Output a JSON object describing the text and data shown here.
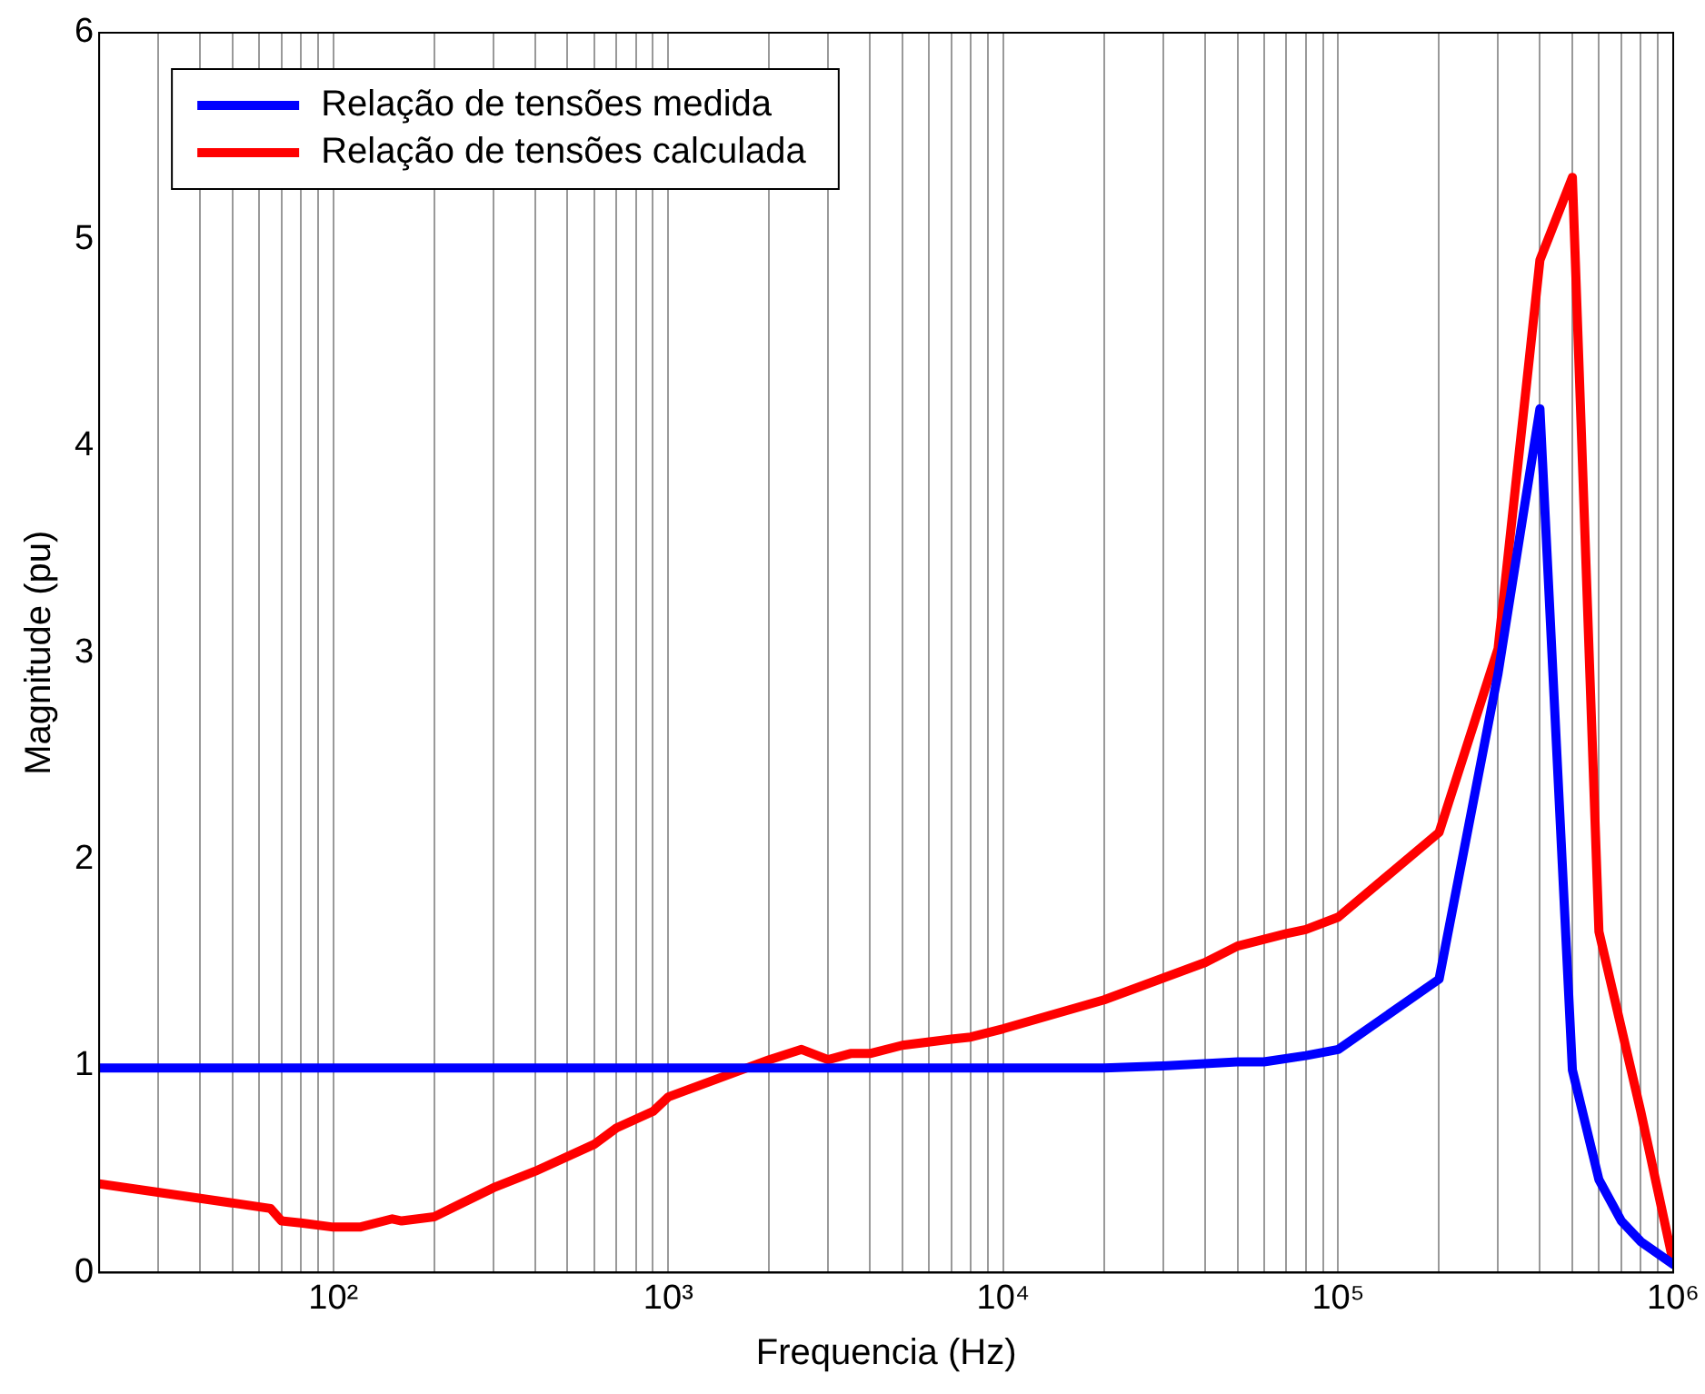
{
  "chart_data": {
    "type": "line",
    "xlabel": "Frequencia (Hz)",
    "ylabel": "Magnitude (pu)",
    "log": "x",
    "xlim": [
      20,
      1000000
    ],
    "ylim": [
      0,
      6
    ],
    "yticks": [
      0,
      1,
      2,
      3,
      4,
      5,
      6
    ],
    "xticks": [
      {
        "value": 20,
        "label": null
      },
      {
        "value": 30,
        "label": null
      },
      {
        "value": 40,
        "label": null
      },
      {
        "value": 50,
        "label": null
      },
      {
        "value": 60,
        "label": null
      },
      {
        "value": 70,
        "label": null
      },
      {
        "value": 80,
        "label": null
      },
      {
        "value": 90,
        "label": null
      },
      {
        "value": 100,
        "label": "10²"
      },
      {
        "value": 200,
        "label": null
      },
      {
        "value": 300,
        "label": null
      },
      {
        "value": 400,
        "label": null
      },
      {
        "value": 500,
        "label": null
      },
      {
        "value": 600,
        "label": null
      },
      {
        "value": 700,
        "label": null
      },
      {
        "value": 800,
        "label": null
      },
      {
        "value": 900,
        "label": null
      },
      {
        "value": 1000,
        "label": "10³"
      },
      {
        "value": 2000,
        "label": null
      },
      {
        "value": 3000,
        "label": null
      },
      {
        "value": 4000,
        "label": null
      },
      {
        "value": 5000,
        "label": null
      },
      {
        "value": 6000,
        "label": null
      },
      {
        "value": 7000,
        "label": null
      },
      {
        "value": 8000,
        "label": null
      },
      {
        "value": 9000,
        "label": null
      },
      {
        "value": 10000,
        "label": "10⁴"
      },
      {
        "value": 20000,
        "label": null
      },
      {
        "value": 30000,
        "label": null
      },
      {
        "value": 40000,
        "label": null
      },
      {
        "value": 50000,
        "label": null
      },
      {
        "value": 60000,
        "label": null
      },
      {
        "value": 70000,
        "label": null
      },
      {
        "value": 80000,
        "label": null
      },
      {
        "value": 90000,
        "label": null
      },
      {
        "value": 100000,
        "label": "10⁵"
      },
      {
        "value": 200000,
        "label": null
      },
      {
        "value": 300000,
        "label": null
      },
      {
        "value": 400000,
        "label": null
      },
      {
        "value": 500000,
        "label": null
      },
      {
        "value": 600000,
        "label": null
      },
      {
        "value": 700000,
        "label": null
      },
      {
        "value": 800000,
        "label": null
      },
      {
        "value": 900000,
        "label": null
      },
      {
        "value": 1000000,
        "label": "10⁶"
      }
    ],
    "grid": "x",
    "legend": "top left",
    "marker": "none",
    "line_style": "solid",
    "series": [
      {
        "name": "Relação de tensões medida",
        "color": "#0000ff",
        "x": [
          20,
          1000,
          10000,
          20000,
          30000,
          50000,
          60000,
          80000,
          100000,
          200000,
          300000,
          400000,
          500000,
          600000,
          700000,
          800000,
          1000000
        ],
        "values": [
          0.99,
          0.99,
          0.99,
          0.99,
          1.0,
          1.02,
          1.02,
          1.05,
          1.08,
          1.42,
          2.9,
          4.18,
          0.98,
          0.45,
          0.25,
          0.15,
          0.04
        ]
      },
      {
        "name": "Relação de tensões calculada",
        "color": "#ff0000",
        "x": [
          20,
          65,
          70,
          80,
          100,
          120,
          150,
          160,
          200,
          300,
          400,
          600,
          700,
          900,
          1000,
          2000,
          2500,
          3000,
          3500,
          4000,
          5000,
          7000,
          8000,
          10000,
          20000,
          40000,
          50000,
          70000,
          80000,
          100000,
          200000,
          300000,
          400000,
          500000,
          600000,
          800000,
          1000000
        ],
        "values": [
          0.43,
          0.31,
          0.25,
          0.24,
          0.22,
          0.22,
          0.26,
          0.25,
          0.27,
          0.41,
          0.49,
          0.62,
          0.7,
          0.78,
          0.85,
          1.03,
          1.08,
          1.03,
          1.06,
          1.06,
          1.1,
          1.13,
          1.14,
          1.18,
          1.32,
          1.5,
          1.58,
          1.64,
          1.66,
          1.72,
          2.13,
          3.02,
          4.9,
          5.3,
          1.65,
          0.78,
          0.05
        ]
      }
    ]
  }
}
